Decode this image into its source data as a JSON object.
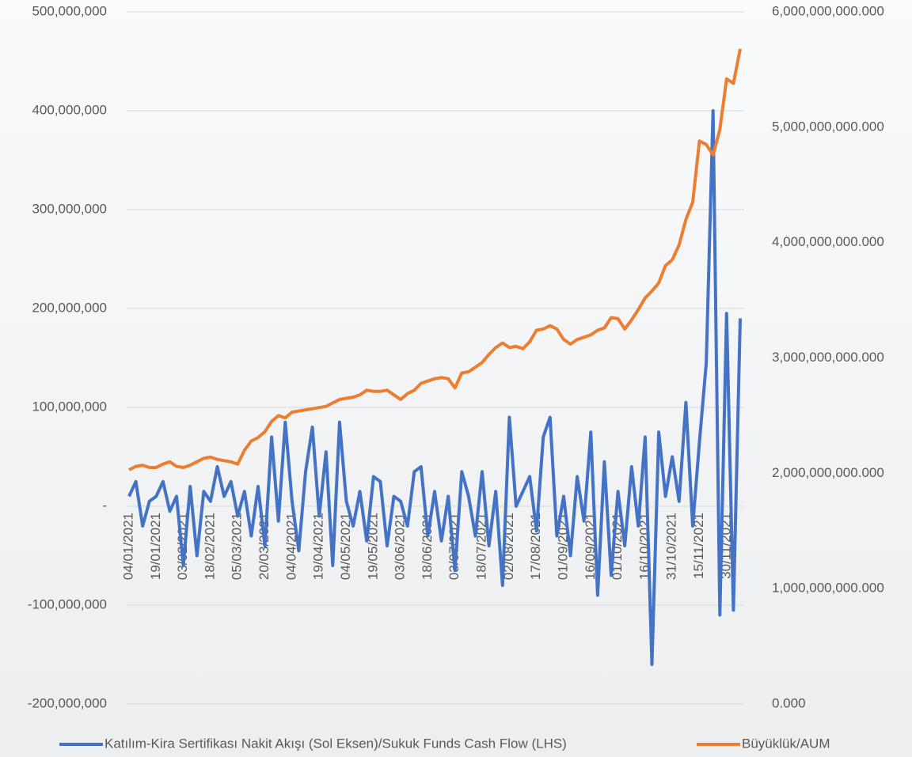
{
  "chart_data": {
    "type": "line",
    "categories": [
      "04/01/2021",
      null,
      null,
      null,
      "19/01/2021",
      null,
      null,
      null,
      "03/02/2021",
      null,
      null,
      null,
      "18/02/2021",
      null,
      null,
      null,
      "05/03/2021",
      null,
      null,
      null,
      "20/03/2021",
      null,
      null,
      null,
      "04/04/2021",
      null,
      null,
      null,
      "19/04/2021",
      null,
      null,
      null,
      "04/05/2021",
      null,
      null,
      null,
      "19/05/2021",
      null,
      null,
      null,
      "03/06/2021",
      null,
      null,
      null,
      "18/06/2021",
      null,
      null,
      null,
      "03/07/2021",
      null,
      null,
      null,
      "18/07/2021",
      null,
      null,
      null,
      "02/08/2021",
      null,
      null,
      null,
      "17/08/2021",
      null,
      null,
      null,
      "01/09/2021",
      null,
      null,
      null,
      "16/09/2021",
      null,
      null,
      null,
      "01/10/2021",
      null,
      null,
      null,
      "16/10/2021",
      null,
      null,
      null,
      "31/10/2021",
      null,
      null,
      null,
      "15/11/2021",
      null,
      null,
      null,
      "30/11/2021",
      null,
      null
    ],
    "series": [
      {
        "name": "Katılım-Kira Sertifikası Nakit Akışı (Sol Eksen)/Sukuk Funds Cash Flow (LHS)",
        "color": "#4472c4",
        "axis": "y",
        "values": [
          10000000,
          25000000,
          -20000000,
          5000000,
          10000000,
          25000000,
          -5000000,
          10000000,
          -60000000,
          20000000,
          -50000000,
          15000000,
          5000000,
          40000000,
          10000000,
          25000000,
          -10000000,
          15000000,
          -30000000,
          20000000,
          -40000000,
          70000000,
          -15000000,
          85000000,
          5000000,
          -45000000,
          35000000,
          80000000,
          -10000000,
          55000000,
          -60000000,
          85000000,
          5000000,
          -20000000,
          15000000,
          -35000000,
          30000000,
          25000000,
          -40000000,
          10000000,
          5000000,
          -20000000,
          35000000,
          40000000,
          -30000000,
          15000000,
          -35000000,
          10000000,
          -65000000,
          35000000,
          10000000,
          -30000000,
          35000000,
          -40000000,
          15000000,
          -80000000,
          90000000,
          0,
          15000000,
          30000000,
          -25000000,
          70000000,
          90000000,
          -30000000,
          10000000,
          -50000000,
          30000000,
          -15000000,
          75000000,
          -90000000,
          45000000,
          -70000000,
          15000000,
          -40000000,
          40000000,
          -20000000,
          70000000,
          -160000000,
          75000000,
          10000000,
          50000000,
          5000000,
          105000000,
          -20000000,
          65000000,
          145000000,
          400000000,
          -110000000,
          195000000,
          -105000000,
          190000000
        ]
      },
      {
        "name": "Büyüklük/AUM",
        "color": "#ed7d31",
        "axis": "y2",
        "values": [
          2030000000,
          2060000000,
          2070000000,
          2050000000,
          2050000000,
          2080000000,
          2100000000,
          2060000000,
          2050000000,
          2070000000,
          2100000000,
          2130000000,
          2140000000,
          2120000000,
          2110000000,
          2100000000,
          2080000000,
          2200000000,
          2280000000,
          2310000000,
          2360000000,
          2450000000,
          2500000000,
          2480000000,
          2530000000,
          2540000000,
          2550000000,
          2560000000,
          2570000000,
          2580000000,
          2610000000,
          2640000000,
          2650000000,
          2660000000,
          2680000000,
          2720000000,
          2710000000,
          2710000000,
          2720000000,
          2680000000,
          2640000000,
          2690000000,
          2720000000,
          2780000000,
          2800000000,
          2820000000,
          2830000000,
          2820000000,
          2740000000,
          2870000000,
          2880000000,
          2920000000,
          2960000000,
          3030000000,
          3090000000,
          3130000000,
          3090000000,
          3100000000,
          3080000000,
          3140000000,
          3240000000,
          3250000000,
          3280000000,
          3250000000,
          3160000000,
          3120000000,
          3160000000,
          3180000000,
          3200000000,
          3240000000,
          3260000000,
          3350000000,
          3340000000,
          3250000000,
          3330000000,
          3420000000,
          3520000000,
          3580000000,
          3650000000,
          3800000000,
          3850000000,
          3980000000,
          4200000000,
          4350000000,
          4880000000,
          4850000000,
          4760000000,
          4980000000,
          5420000000,
          5380000000,
          5680000000
        ]
      }
    ],
    "ylim": [
      -200000000,
      500000000
    ],
    "yticks": [
      {
        "value": -200000000,
        "label": "-200,000,000"
      },
      {
        "value": -100000000,
        "label": "-100,000,000"
      },
      {
        "value": 0,
        "label": "-"
      },
      {
        "value": 100000000,
        "label": "100,000,000"
      },
      {
        "value": 200000000,
        "label": "200,000,000"
      },
      {
        "value": 300000000,
        "label": "300,000,000"
      },
      {
        "value": 400000000,
        "label": "400,000,000"
      },
      {
        "value": 500000000,
        "label": "500,000,000"
      }
    ],
    "y2lim": [
      0,
      6000000000
    ],
    "y2ticks": [
      {
        "value": 0,
        "label": "0.000"
      },
      {
        "value": 1000000000,
        "label": "1,000,000,000.000"
      },
      {
        "value": 2000000000,
        "label": "2,000,000,000.000"
      },
      {
        "value": 3000000000,
        "label": "3,000,000,000.000"
      },
      {
        "value": 4000000000,
        "label": "4,000,000,000.000"
      },
      {
        "value": 5000000000,
        "label": "5,000,000,000.000"
      },
      {
        "value": 6000000000,
        "label": "6,000,000,000.000"
      }
    ],
    "grid": true,
    "legend": "bottom"
  }
}
